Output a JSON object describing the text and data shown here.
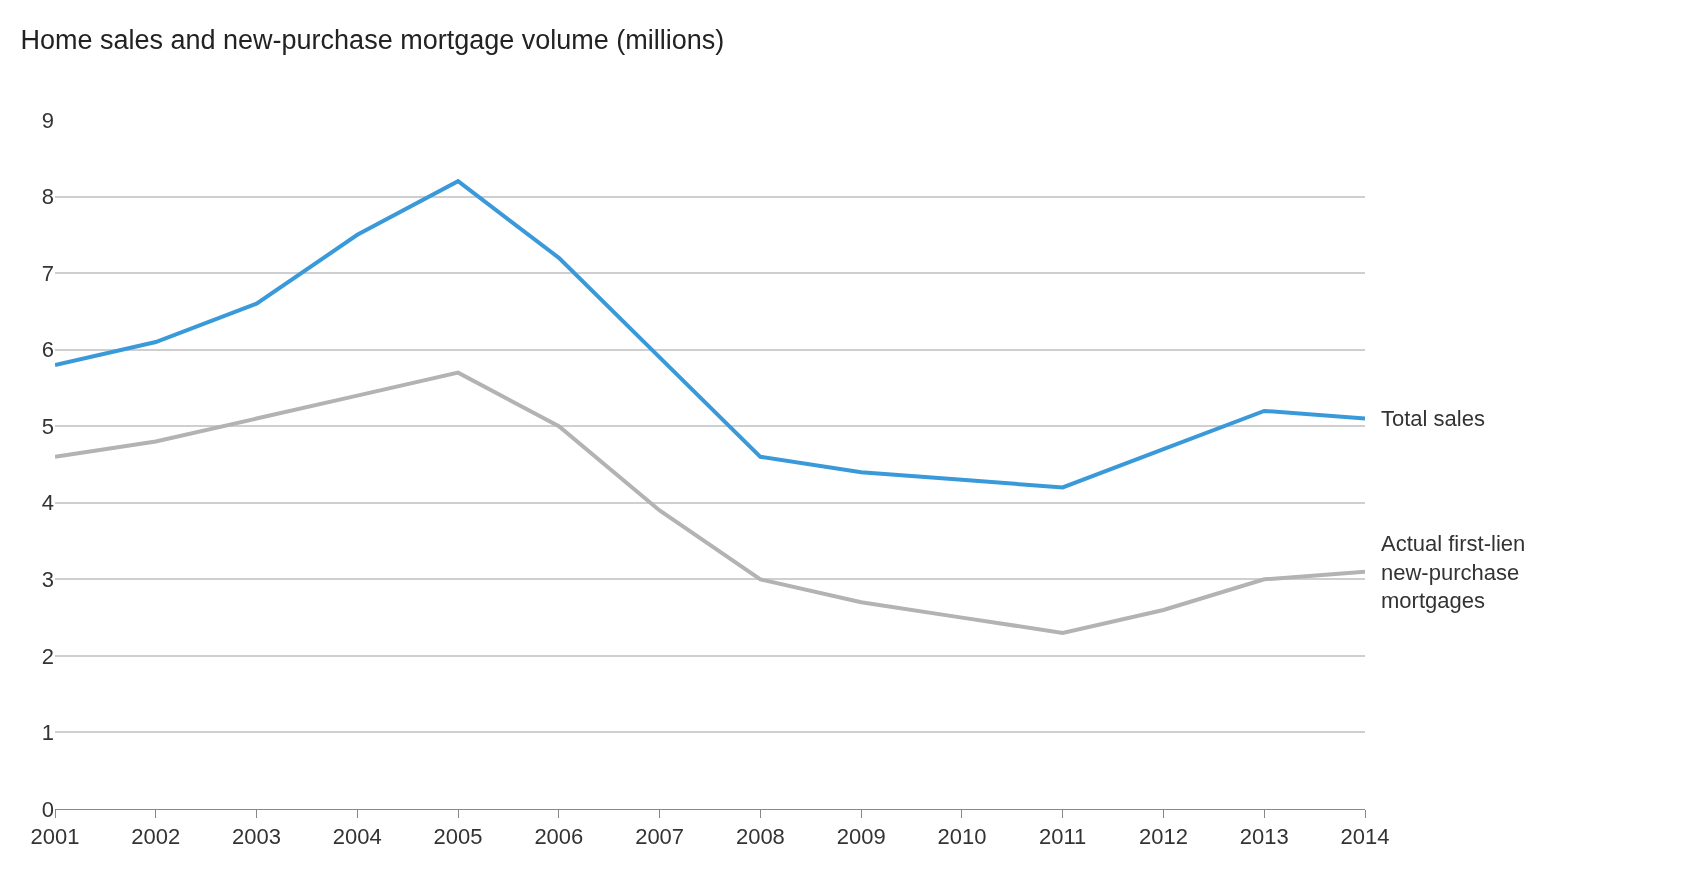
{
  "chart_data": {
    "type": "line",
    "title": "Home sales and new-purchase mortgage volume (millions)",
    "x": [
      2001,
      2002,
      2003,
      2004,
      2005,
      2006,
      2007,
      2008,
      2009,
      2010,
      2011,
      2012,
      2013,
      2014
    ],
    "series": [
      {
        "name": "Total sales",
        "color": "#3a9ad9",
        "values": [
          5.8,
          6.1,
          6.6,
          7.5,
          8.2,
          7.2,
          5.9,
          4.6,
          4.4,
          4.3,
          4.2,
          4.7,
          5.2,
          5.1
        ]
      },
      {
        "name": "Actual first-lien new-purchase mortgages",
        "color": "#b3b3b3",
        "values": [
          4.6,
          4.8,
          5.1,
          5.4,
          5.7,
          5.0,
          3.9,
          3.0,
          2.7,
          2.5,
          2.3,
          2.6,
          3.0,
          3.1
        ]
      }
    ],
    "xlim": [
      2001,
      2014
    ],
    "xticks": [
      2001,
      2002,
      2003,
      2004,
      2005,
      2006,
      2007,
      2008,
      2009,
      2010,
      2011,
      2012,
      2013,
      2014
    ],
    "ylim": [
      0,
      9
    ],
    "yticks": [
      0,
      1,
      2,
      3,
      4,
      5,
      6,
      7,
      8,
      9
    ],
    "grid": "y",
    "legend": false,
    "marker": "none",
    "line_style": "solid"
  }
}
